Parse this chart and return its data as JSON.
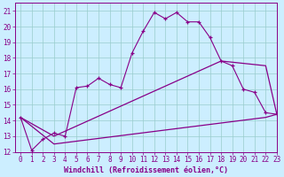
{
  "xlabel": "Windchill (Refroidissement éolien,°C)",
  "bg_color": "#cceeff",
  "line_color": "#880088",
  "grid_color": "#99cccc",
  "text_color": "#880088",
  "xlim": [
    -0.5,
    23
  ],
  "ylim": [
    12,
    21.5
  ],
  "xticks": [
    0,
    1,
    2,
    3,
    4,
    5,
    6,
    7,
    8,
    9,
    10,
    11,
    12,
    13,
    14,
    15,
    16,
    17,
    18,
    19,
    20,
    21,
    22,
    23
  ],
  "yticks": [
    12,
    13,
    14,
    15,
    16,
    17,
    18,
    19,
    20,
    21
  ],
  "line1_x": [
    0,
    1,
    2,
    3,
    4,
    5,
    6,
    7,
    8,
    9,
    10,
    11,
    12,
    13,
    14,
    15,
    16,
    17,
    18,
    19,
    20,
    21,
    22,
    23
  ],
  "line1_y": [
    14.2,
    12.1,
    12.8,
    13.2,
    13.0,
    16.1,
    16.2,
    16.7,
    16.3,
    16.1,
    18.3,
    19.7,
    20.9,
    20.5,
    20.9,
    20.3,
    20.3,
    19.3,
    17.8,
    17.5,
    16.0,
    15.8,
    14.5,
    14.4
  ],
  "line2_x": [
    0,
    3,
    18,
    22,
    23
  ],
  "line2_y": [
    14.2,
    13.0,
    17.8,
    17.5,
    14.4
  ],
  "line3_x": [
    0,
    3,
    22,
    23
  ],
  "line3_y": [
    14.2,
    12.5,
    14.2,
    14.4
  ],
  "xlabel_fontsize": 6.0,
  "tick_fontsize": 5.5
}
